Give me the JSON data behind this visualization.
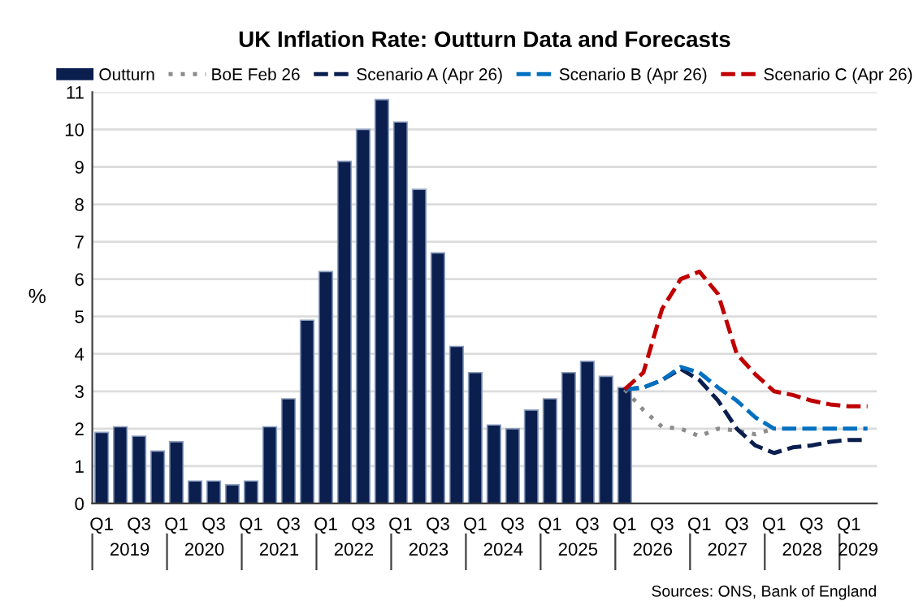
{
  "chart_data": {
    "type": "bar",
    "title": "UK Inflation Rate: Outturn Data and Forecasts",
    "ylabel": "%",
    "categories": [
      "Q1",
      null,
      "Q3",
      null,
      "Q1",
      null,
      "Q3",
      null,
      "Q1",
      null,
      "Q3",
      null,
      "Q1",
      null,
      "Q3",
      null,
      "Q1",
      null,
      "Q3",
      null,
      "Q1",
      null,
      "Q3",
      null,
      "Q1",
      null,
      "Q3",
      null,
      "Q1",
      null,
      "Q3",
      null,
      "Q1",
      null,
      "Q3",
      null,
      "Q1",
      null,
      "Q3",
      null,
      "Q1",
      null
    ],
    "series": [
      {
        "name": "Outturn",
        "color": "#0b1f4f",
        "values": [
          1.9,
          2.05,
          1.8,
          1.4,
          1.65,
          0.6,
          0.6,
          0.5,
          0.6,
          2.05,
          2.8,
          4.9,
          6.2,
          9.15,
          10.0,
          10.8,
          10.2,
          8.4,
          6.7,
          4.2,
          3.5,
          2.1,
          2.0,
          2.5,
          2.8,
          3.5,
          3.8,
          3.4,
          3.1,
          null,
          null,
          null,
          null,
          null,
          null,
          null,
          null,
          null,
          null,
          null,
          null,
          null
        ]
      },
      {
        "name": "BoE Feb 26",
        "type": "line",
        "line_style": "dotted",
        "color": "#8c8c8c",
        "values": [
          null,
          null,
          null,
          null,
          null,
          null,
          null,
          null,
          null,
          null,
          null,
          null,
          null,
          null,
          null,
          null,
          null,
          null,
          null,
          null,
          null,
          null,
          null,
          null,
          null,
          null,
          null,
          null,
          3.05,
          2.5,
          2.05,
          2.0,
          1.8,
          2.0,
          1.95,
          1.85,
          2.0,
          null,
          null,
          null,
          null,
          null
        ]
      },
      {
        "name": "Scenario A (Apr 26)",
        "type": "line",
        "line_style": "dashed",
        "color": "#0b1f4f",
        "values": [
          null,
          null,
          null,
          null,
          null,
          null,
          null,
          null,
          null,
          null,
          null,
          null,
          null,
          null,
          null,
          null,
          null,
          null,
          null,
          null,
          null,
          null,
          null,
          null,
          null,
          null,
          null,
          null,
          3.05,
          3.1,
          3.3,
          3.6,
          3.3,
          2.75,
          2.0,
          1.55,
          1.35,
          1.5,
          1.55,
          1.65,
          1.7,
          1.7
        ]
      },
      {
        "name": "Scenario B (Apr 26)",
        "type": "line",
        "line_style": "dashed",
        "color": "#0070c0",
        "values": [
          null,
          null,
          null,
          null,
          null,
          null,
          null,
          null,
          null,
          null,
          null,
          null,
          null,
          null,
          null,
          null,
          null,
          null,
          null,
          null,
          null,
          null,
          null,
          null,
          null,
          null,
          null,
          null,
          3.05,
          3.1,
          3.3,
          3.65,
          3.5,
          3.1,
          2.75,
          2.3,
          2.0,
          2.0,
          2.0,
          2.0,
          2.0,
          2.0
        ]
      },
      {
        "name": "Scenario C (Apr 26)",
        "type": "line",
        "line_style": "dashed",
        "color": "#c00000",
        "values": [
          null,
          null,
          null,
          null,
          null,
          null,
          null,
          null,
          null,
          null,
          null,
          null,
          null,
          null,
          null,
          null,
          null,
          null,
          null,
          null,
          null,
          null,
          null,
          null,
          null,
          null,
          null,
          null,
          3.05,
          3.5,
          5.2,
          6.0,
          6.2,
          5.6,
          4.0,
          3.45,
          3.0,
          2.9,
          2.75,
          2.65,
          2.6,
          2.6
        ]
      }
    ],
    "ylim": [
      0,
      11
    ],
    "yticks": [
      0,
      1,
      2,
      3,
      4,
      5,
      6,
      7,
      8,
      9,
      10,
      11
    ],
    "grid": "y",
    "legend": "top",
    "annotations": [
      "2019",
      "2020",
      "2021",
      "2022",
      "2023",
      "2024",
      "2025",
      "2026",
      "2027",
      "2028",
      "2029",
      "Sources: ONS, Bank of England"
    ]
  }
}
